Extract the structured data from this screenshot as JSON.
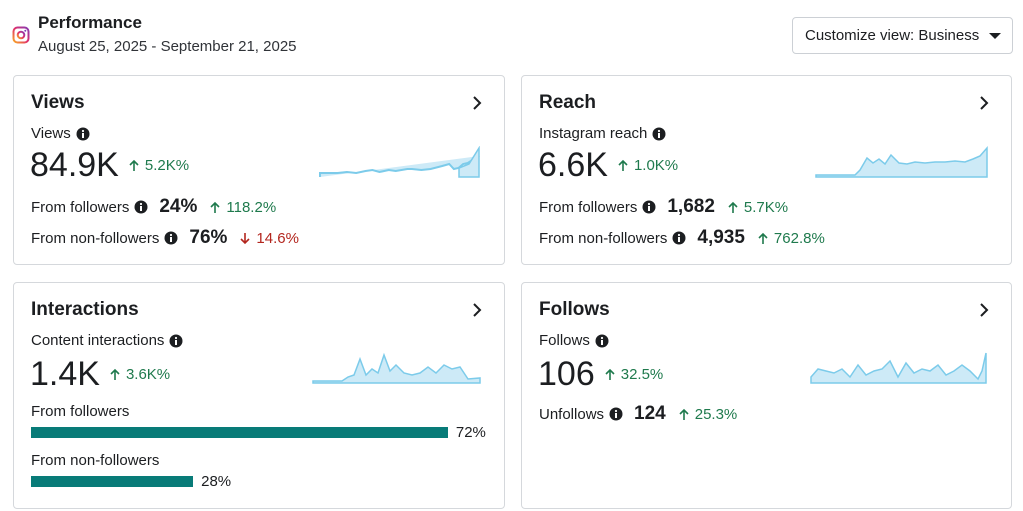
{
  "header": {
    "title": "Performance",
    "date_range": "August 25, 2025 - September 21, 2025",
    "customize": "Customize view: Business"
  },
  "views": {
    "title": "Views",
    "metric_label": "Views",
    "metric_value": "84.9K",
    "change": "5.2K%",
    "rows": [
      {
        "label": "From followers",
        "value": "24%",
        "change": "118.2%"
      },
      {
        "label": "From non-followers",
        "value": "76%",
        "change": "14.6%"
      }
    ]
  },
  "reach": {
    "title": "Reach",
    "metric_label": "Instagram reach",
    "metric_value": "6.6K",
    "change": "1.0K%",
    "rows": [
      {
        "label": "From followers",
        "value": "1,682",
        "change": "5.7K%"
      },
      {
        "label": "From non-followers",
        "value": "4,935",
        "change": "762.8%"
      }
    ]
  },
  "interactions": {
    "title": "Interactions",
    "metric_label": "Content interactions",
    "metric_value": "1.4K",
    "change": "3.6K%",
    "breakdown": {
      "labels": [
        "From followers",
        "From non-followers"
      ],
      "values": [
        72,
        28
      ],
      "value_labels": [
        "72%",
        "28%"
      ]
    }
  },
  "follows": {
    "title": "Follows",
    "metric_label": "Follows",
    "metric_value": "106",
    "change": "32.5%",
    "rows": [
      {
        "label": "Unfollows",
        "value": "124",
        "change": "25.3%"
      }
    ]
  }
}
